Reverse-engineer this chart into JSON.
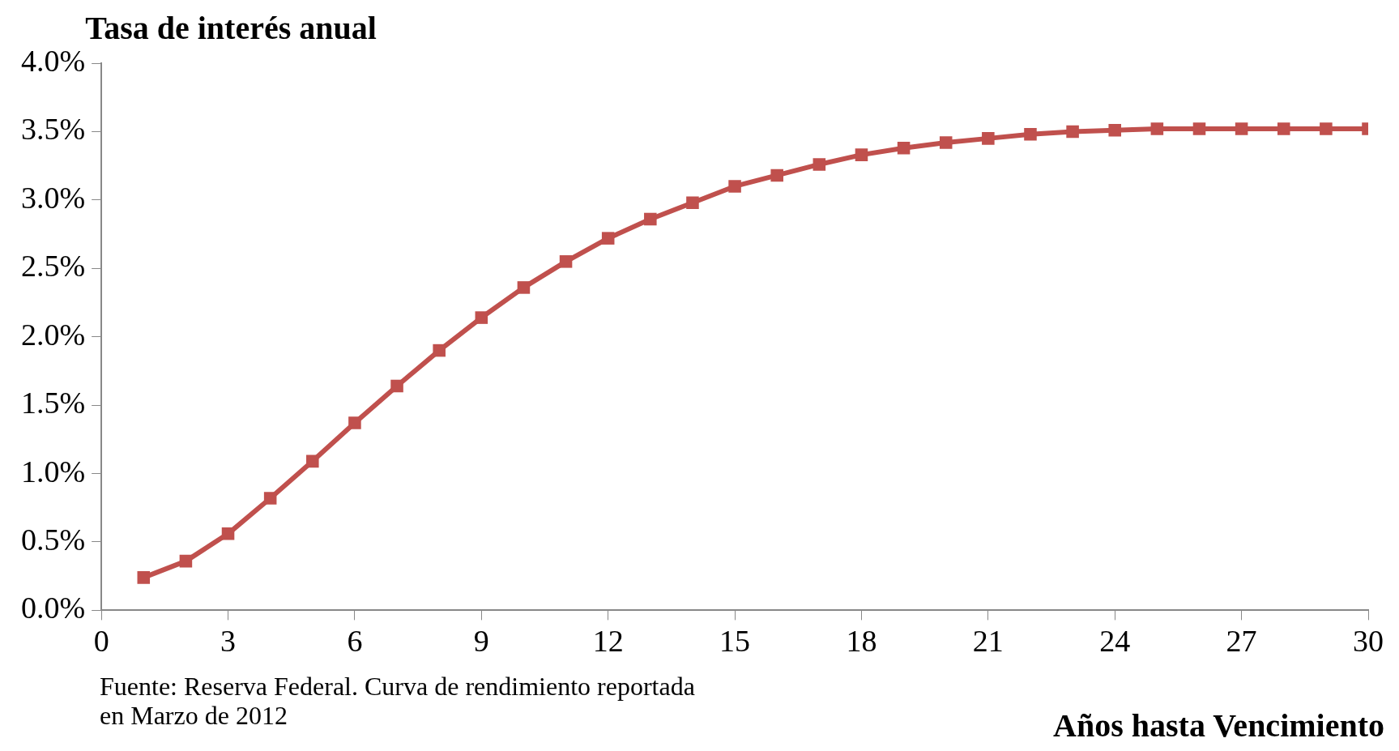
{
  "chart_data": {
    "type": "line",
    "ylabel": "Tasa de interés anual",
    "xlabel": "Años hasta Vencimiento",
    "annotations": [
      "Fuente: Reserva Federal. Curva de rendimiento reportada en Marzo de 2012"
    ],
    "x": [
      1,
      2,
      3,
      4,
      5,
      6,
      7,
      8,
      9,
      10,
      11,
      12,
      13,
      14,
      15,
      16,
      17,
      18,
      19,
      20,
      21,
      22,
      23,
      24,
      25,
      26,
      27,
      28,
      29,
      30
    ],
    "series": [
      {
        "color": "#c0504d",
        "values": [
          0.24,
          0.36,
          0.56,
          0.82,
          1.09,
          1.37,
          1.64,
          1.9,
          2.14,
          2.36,
          2.55,
          2.72,
          2.86,
          2.98,
          3.1,
          3.18,
          3.26,
          3.33,
          3.38,
          3.42,
          3.45,
          3.48,
          3.5,
          3.51,
          3.52,
          3.52,
          3.52,
          3.52,
          3.52,
          3.52
        ]
      }
    ],
    "xlim": [
      0,
      30
    ],
    "xticks": [
      0,
      3,
      6,
      9,
      12,
      15,
      18,
      21,
      24,
      27,
      30
    ],
    "ylim": [
      0,
      4
    ],
    "yticks": [
      {
        "value": 0,
        "label": "0.0%"
      },
      {
        "value": 0.5,
        "label": "0.5%"
      },
      {
        "value": 1,
        "label": "1.0%"
      },
      {
        "value": 1.5,
        "label": "1.5%"
      },
      {
        "value": 2,
        "label": "2.0%"
      },
      {
        "value": 2.5,
        "label": "2.5%"
      },
      {
        "value": 3,
        "label": "3.0%"
      },
      {
        "value": 3.5,
        "label": "3.5%"
      },
      {
        "value": 4,
        "label": "4.0%"
      }
    ],
    "grid": false,
    "legend": false,
    "marker": "square",
    "line_style": "solid"
  }
}
